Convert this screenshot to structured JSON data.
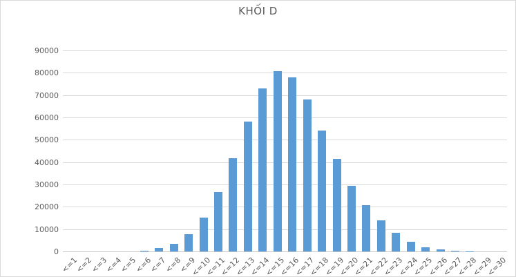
{
  "title": "KHỐI D",
  "chart_data": {
    "type": "bar",
    "title": "KHỐI D",
    "categories": [
      "<=1",
      "<=2",
      "<=3",
      "<=4",
      "<=5",
      "<=6",
      "<=7",
      "<=8",
      "<=9",
      "<=10",
      "<=11",
      "<=12",
      "<=13",
      "<=14",
      "<=15",
      "<=16",
      "<=17",
      "<=18",
      "<=19",
      "<=20",
      "<=21",
      "<=22",
      "<=23",
      "<=24",
      "<=25",
      "<=26",
      "<=27",
      "<=28",
      "<=29",
      "<=30"
    ],
    "values": [
      0,
      0,
      0,
      0,
      0,
      400,
      1400,
      3300,
      7700,
      15200,
      26600,
      41800,
      58200,
      73000,
      80600,
      77900,
      68000,
      54100,
      41300,
      29500,
      20600,
      13900,
      8300,
      4300,
      2000,
      900,
      300,
      100,
      0,
      0
    ],
    "xlabel": "",
    "ylabel": "",
    "ylim": [
      0,
      90000
    ],
    "ytick_step": 10000,
    "yticks": [
      0,
      10000,
      20000,
      30000,
      40000,
      50000,
      60000,
      70000,
      80000,
      90000
    ],
    "grid": true,
    "legend_position": "none",
    "bar_color": "#5b9bd5",
    "text_color": "#595959",
    "gridline_color": "#d9d9d9",
    "x_label_rotation_deg": 45
  }
}
